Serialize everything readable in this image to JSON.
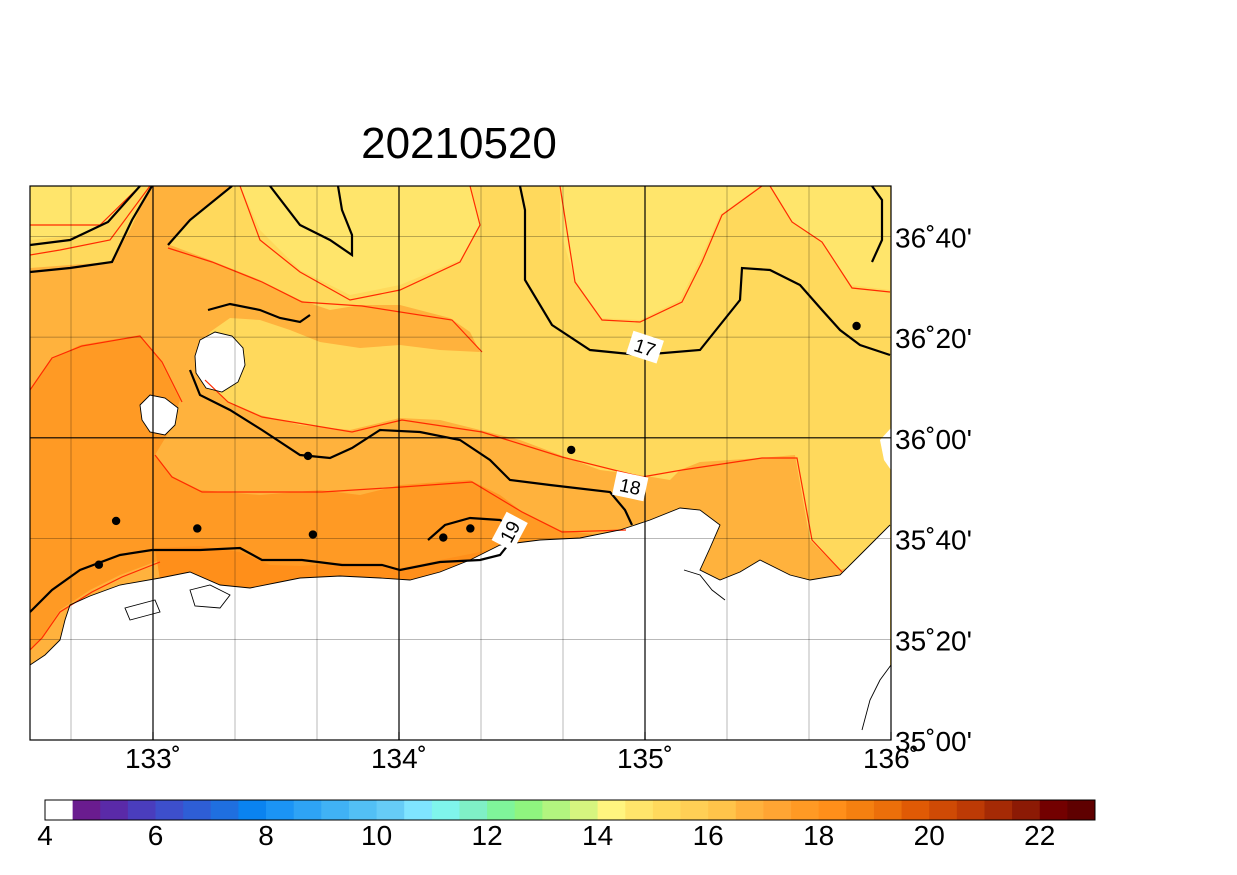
{
  "title": "20210520",
  "map": {
    "lon_range": [
      132.5,
      136.0
    ],
    "lat_range": [
      35.0,
      36.8333
    ],
    "lon_ticks": [
      {
        "value": 133,
        "label": "133˚"
      },
      {
        "value": 134,
        "label": "134˚"
      },
      {
        "value": 135,
        "label": "135˚"
      },
      {
        "value": 136,
        "label": "136˚"
      }
    ],
    "lat_ticks": [
      {
        "value": 35.0,
        "label": "35˚00'"
      },
      {
        "value": 35.3333,
        "label": "35˚20'"
      },
      {
        "value": 35.6667,
        "label": "35˚40'"
      },
      {
        "value": 36.0,
        "label": "36˚00'"
      },
      {
        "value": 36.3333,
        "label": "36˚20'"
      },
      {
        "value": 36.6667,
        "label": "36˚40'"
      }
    ],
    "contour_labels": [
      {
        "text": "17",
        "lon": 135.0,
        "lat": 36.3,
        "angle": 18
      },
      {
        "text": "18",
        "lon": 134.94,
        "lat": 35.84,
        "angle": 12
      },
      {
        "text": "19",
        "lon": 134.45,
        "lat": 35.69,
        "angle": -62
      }
    ],
    "stations": [
      {
        "lon": 132.78,
        "lat": 35.58
      },
      {
        "lon": 132.85,
        "lat": 35.725
      },
      {
        "lon": 133.18,
        "lat": 35.7
      },
      {
        "lon": 133.63,
        "lat": 35.94
      },
      {
        "lon": 133.65,
        "lat": 35.68
      },
      {
        "lon": 134.18,
        "lat": 35.67
      },
      {
        "lon": 134.29,
        "lat": 35.7
      },
      {
        "lon": 134.7,
        "lat": 35.96
      },
      {
        "lon": 135.86,
        "lat": 36.37
      }
    ]
  },
  "colorbar": {
    "labels": [
      "4",
      "6",
      "8",
      "10",
      "12",
      "14",
      "16",
      "18",
      "20",
      "22"
    ],
    "min": 4,
    "max": 23,
    "step": 0.5,
    "colors": [
      "#ffffff",
      "#6a1c8f",
      "#5a2aa8",
      "#4a3dbd",
      "#3d4fcc",
      "#2e5ed6",
      "#1f6fdf",
      "#0a83f0",
      "#1b94f5",
      "#2ea3f5",
      "#40b2f5",
      "#52c0f5",
      "#66ccf7",
      "#7fe4ff",
      "#7ff5ec",
      "#7ff0c6",
      "#7ff59a",
      "#8ff57f",
      "#b2f57f",
      "#d6f57f",
      "#fff57f",
      "#ffe56b",
      "#ffd95c",
      "#ffcf55",
      "#ffc44a",
      "#ffb23d",
      "#ffa533",
      "#ff9a24",
      "#ff8f1a",
      "#f58010",
      "#ec6f0a",
      "#e05a05",
      "#cf4a05",
      "#bd3a05",
      "#a52a05",
      "#8c1a05",
      "#730000",
      "#5f0000"
    ]
  },
  "field_colors": {
    "c16": "#ffe56b",
    "c17": "#ffd95c",
    "c17b": "#ffcf55",
    "c18": "#ffb23d",
    "c18b": "#ffa533",
    "c19": "#ff9a24",
    "c19b": "#ff8f1a",
    "land": "#ffffff"
  }
}
